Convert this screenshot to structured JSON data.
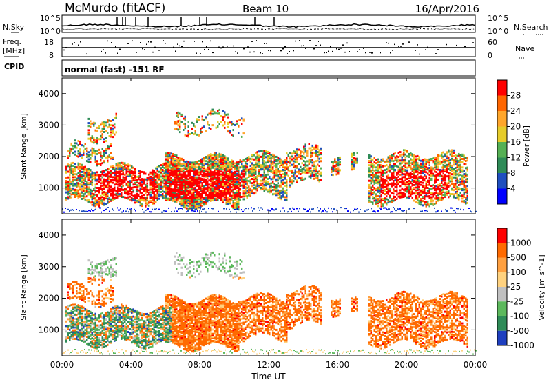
{
  "header": {
    "station": "McMurdo (fitACF)",
    "beam": "Beam 10",
    "date": "16/Apr/2016"
  },
  "noise_panel": {
    "left_label": "N.Sky",
    "right_label": "N.Search",
    "left_ticks": [
      "10^5",
      "10^0"
    ],
    "right_ticks": [
      "10^5",
      "10^0"
    ]
  },
  "freq_panel": {
    "left_label_line1": "Freq.",
    "left_label_line2": "[MHz]",
    "right_label": "Nave",
    "left_ticks": [
      "18",
      "8"
    ],
    "right_ticks": [
      "60",
      "0"
    ]
  },
  "cpid_panel": {
    "label": "CPID",
    "text": "normal (fast) -151 RF"
  },
  "chart_data": [
    {
      "type": "heatmap",
      "parameter": "Power",
      "ylabel": "Slant Range [km]",
      "colorbar_label": "Power [dB]",
      "ylim": [
        180,
        4500
      ],
      "yticks": [
        "1000",
        "2000",
        "3000",
        "4000"
      ],
      "colorbar_ticks": [
        "4",
        "8",
        "12",
        "16",
        "20",
        "24",
        "28"
      ],
      "colormap": [
        "#0000ff",
        "#1f4fbf",
        "#2e8b57",
        "#55b054",
        "#e6cc2a",
        "#ffa62b",
        "#ff6600",
        "#ff0000"
      ]
    },
    {
      "type": "heatmap",
      "parameter": "Velocity",
      "ylabel": "Slant Range [km]",
      "colorbar_label": "Velocity [m s^-1]",
      "ylim": [
        180,
        4500
      ],
      "yticks": [
        "1000",
        "2000",
        "3000",
        "4000"
      ],
      "colorbar_ticks": [
        "1000",
        "500",
        "100",
        "25",
        "-25",
        "-100",
        "-500",
        "-1000"
      ],
      "colormap": [
        "#1e3fbf",
        "#2e8b57",
        "#5cb85c",
        "#c0c0c0",
        "#ffd27f",
        "#ffa040",
        "#ff6a00",
        "#ff0000"
      ]
    }
  ],
  "x_axis": {
    "label": "Time UT",
    "ticks": [
      "00:00",
      "04:00",
      "08:00",
      "12:00",
      "16:00",
      "20:00",
      "00:00"
    ]
  },
  "colors": {
    "power_red": "#ff0000",
    "velocity_orange": "#ff7a1a"
  }
}
